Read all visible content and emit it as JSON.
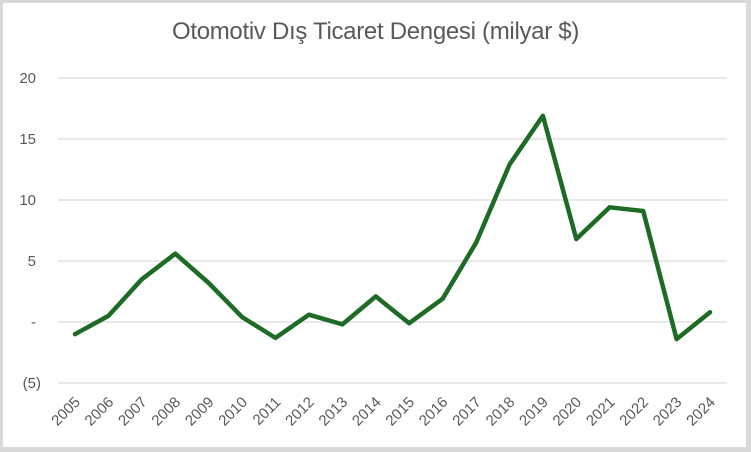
{
  "chart_data": {
    "type": "line",
    "title": "Otomotiv Dış Ticaret Dengesi (milyar $)",
    "xlabel": "",
    "ylabel": "",
    "ylim": [
      -5,
      20
    ],
    "grid": true,
    "legend": "none",
    "y_ticks": [
      {
        "value": 20,
        "label": "20"
      },
      {
        "value": 15,
        "label": "15"
      },
      {
        "value": 10,
        "label": "10"
      },
      {
        "value": 5,
        "label": "5"
      },
      {
        "value": 0,
        "label": "-"
      },
      {
        "value": -5,
        "label": "(5)"
      }
    ],
    "categories": [
      "2005",
      "2006",
      "2007",
      "2008",
      "2009",
      "2010",
      "2011",
      "2012",
      "2013",
      "2014",
      "2015",
      "2016",
      "2017",
      "2018",
      "2019",
      "2020",
      "2021",
      "2022",
      "2023",
      "2024"
    ],
    "series": [
      {
        "name": "Otomotiv Dış Ticaret Dengesi",
        "color": "#1e6b25",
        "values": [
          -1.0,
          0.5,
          3.5,
          5.6,
          3.2,
          0.4,
          -1.3,
          0.6,
          -0.2,
          2.1,
          -0.1,
          1.9,
          6.5,
          12.9,
          16.9,
          6.8,
          9.4,
          9.1,
          -1.4,
          0.8
        ]
      }
    ]
  },
  "colors": {
    "line": "#1e6b25",
    "grid": "#d9d9d9",
    "text": "#595959"
  }
}
